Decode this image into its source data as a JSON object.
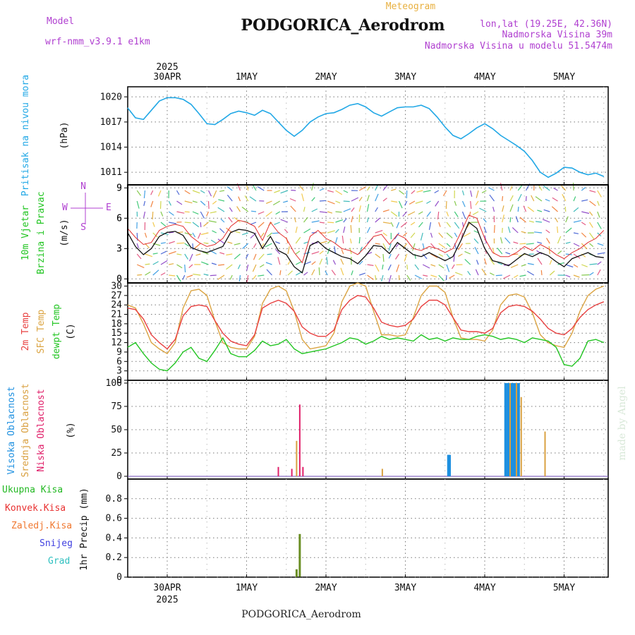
{
  "header": {
    "model_label": "Model",
    "model_name": "wrf-nmm_v3.9.1 e1km",
    "meteogram": "Meteogram",
    "station": "PODGORICA_Aerodrom",
    "lonlat": "lon,lat (19.25E, 42.36N)",
    "elevation": "Nadmorska Visina 39m",
    "model_elevation": "Nadmorska Visina u modelu 51.5474m",
    "footer": "PODGORICA_Aerodrom",
    "watermark": "made by Angel"
  },
  "days": [
    "30APR",
    "1MAY",
    "2MAY",
    "3MAY",
    "4MAY",
    "5MAY"
  ],
  "year": "2025",
  "colors": {
    "pressure": "#22a8e6",
    "wind_speed_max": "#e23030",
    "wind_speed": "#111111",
    "t2m": "#e84040",
    "sfc": "#dba442",
    "dewpt": "#22c522",
    "cloud_high": "#1e90e0",
    "cloud_mid": "#d9a040",
    "cloud_low": "#e0206a",
    "precip_total": "#22b822",
    "precip_conv": "#e83030",
    "precip_frozen": "#f07830",
    "precip_snow": "#4040e0",
    "precip_grad": "#30c0c0",
    "precip_bar": "#6a8e23",
    "ylabel_blue": "#22a8e6",
    "ylabel_purple": "#b040d0",
    "header_orange": "#e8b040"
  },
  "panels": {
    "pressure": {
      "ylabel1": "Pritisak na nivou mora",
      "ylabel2": "(hPa)",
      "ticks": [
        "1011",
        "1014",
        "1017",
        "1020"
      ]
    },
    "wind": {
      "ylabel1": "10m Vjetar",
      "ylabel1b": "Brzina i Pravac",
      "ylabel2": "(m/s)",
      "ticks": [
        "0",
        "3",
        "6",
        "9"
      ],
      "compass_n": "N",
      "compass_w": "W",
      "compass_e": "E",
      "compass_s": "S"
    },
    "temp": {
      "ylabel_t2m": "2m Temp",
      "ylabel_sfc": "SFC Temp",
      "ylabel_dew": "dewpt Temp",
      "ylabel2": "(C)",
      "ticks": [
        "0",
        "3",
        "6",
        "9",
        "12",
        "15",
        "18",
        "21",
        "24",
        "27",
        "30"
      ]
    },
    "cloud": {
      "ylabel_high": "Visoka Oblacnost",
      "ylabel_mid": "Srednja Oblacnost",
      "ylabel_low": "Niska Oblacnost",
      "ylabel2": "(%)",
      "ticks": [
        "0",
        "25",
        "50",
        "75",
        "100"
      ]
    },
    "precip": {
      "legend": [
        "Ukupna Kisa",
        "Konvek.Kisa",
        "Zaledj.Kisa",
        "Snijeg",
        "Grad"
      ],
      "ylabel": "1hr Precip (mm)",
      "ticks": [
        "0",
        "0.2",
        "0.4",
        "0.6",
        "0.8"
      ]
    }
  },
  "chart_data": [
    {
      "type": "line",
      "title": "Pritisak na nivou mora",
      "ylabel": "(hPa)",
      "ylim": [
        1009.5,
        1021.2
      ],
      "x_unit": "days after 30APR 00h",
      "x": [
        -0.5,
        -0.4,
        -0.3,
        -0.2,
        -0.1,
        0,
        0.1,
        0.2,
        0.3,
        0.4,
        0.5,
        0.6,
        0.7,
        0.8,
        0.9,
        1,
        1.1,
        1.2,
        1.3,
        1.4,
        1.5,
        1.6,
        1.7,
        1.8,
        1.9,
        2,
        2.1,
        2.2,
        2.3,
        2.4,
        2.5,
        2.6,
        2.7,
        2.8,
        2.9,
        3,
        3.1,
        3.2,
        3.3,
        3.4,
        3.5,
        3.6,
        3.7,
        3.8,
        3.9,
        4,
        4.1,
        4.2,
        4.3,
        4.4,
        4.5,
        4.6,
        4.7,
        4.8,
        4.9,
        5,
        5.1,
        5.2,
        5.3,
        5.4,
        5.5
      ],
      "series": [
        {
          "name": "Pritisak",
          "values": [
            1018.7,
            1017.5,
            1017.3,
            1018.4,
            1019.5,
            1019.9,
            1019.9,
            1019.7,
            1019.1,
            1018.0,
            1016.8,
            1016.7,
            1017.3,
            1018.0,
            1018.3,
            1018.1,
            1017.8,
            1018.4,
            1018.0,
            1017.0,
            1016.0,
            1015.3,
            1016.0,
            1017.0,
            1017.6,
            1018.0,
            1018.1,
            1018.5,
            1019.0,
            1019.2,
            1018.8,
            1018.1,
            1017.7,
            1018.2,
            1018.7,
            1018.8,
            1018.8,
            1019.0,
            1018.6,
            1017.6,
            1016.4,
            1015.4,
            1015.0,
            1015.6,
            1016.3,
            1016.8,
            1016.2,
            1015.4,
            1014.8,
            1014.2,
            1013.5,
            1012.4,
            1011.0,
            1010.4,
            1010.9,
            1011.6,
            1011.5,
            1011.0,
            1010.7,
            1010.9,
            1010.5
          ]
        }
      ]
    },
    {
      "type": "line",
      "title": "10m Vjetar Brzina i Pravac",
      "ylabel": "(m/s)",
      "ylim": [
        -0.4,
        9.3
      ],
      "x_unit": "days after 30APR 00h",
      "x": [
        -0.5,
        -0.4,
        -0.3,
        -0.2,
        -0.1,
        0,
        0.1,
        0.2,
        0.3,
        0.4,
        0.5,
        0.6,
        0.7,
        0.8,
        0.9,
        1,
        1.1,
        1.2,
        1.3,
        1.4,
        1.5,
        1.6,
        1.7,
        1.8,
        1.9,
        2,
        2.1,
        2.2,
        2.3,
        2.4,
        2.5,
        2.6,
        2.7,
        2.8,
        2.9,
        3,
        3.1,
        3.2,
        3.3,
        3.4,
        3.5,
        3.6,
        3.7,
        3.8,
        3.9,
        4,
        4.1,
        4.2,
        4.3,
        4.4,
        4.5,
        4.6,
        4.7,
        4.8,
        4.9,
        5,
        5.1,
        5.2,
        5.3,
        5.4,
        5.5
      ],
      "series": [
        {
          "name": "Brzina",
          "values": [
            4.6,
            3.2,
            2.4,
            3.0,
            4.2,
            4.6,
            4.7,
            4.3,
            3.1,
            2.8,
            2.6,
            2.9,
            3.2,
            4.6,
            4.9,
            4.8,
            4.5,
            3.0,
            4.2,
            2.8,
            2.4,
            1.2,
            0.6,
            3.3,
            3.7,
            3.0,
            2.6,
            2.2,
            2.0,
            1.5,
            2.3,
            3.3,
            3.2,
            2.5,
            3.6,
            3.0,
            2.4,
            2.2,
            2.6,
            2.2,
            1.8,
            2.2,
            3.8,
            5.6,
            5.0,
            3.0,
            1.8,
            1.6,
            1.3,
            1.9,
            2.5,
            2.2,
            2.6,
            2.3,
            1.7,
            1.2,
            2.0,
            2.3,
            2.6,
            2.2,
            2.1
          ]
        },
        {
          "name": "Max",
          "values": [
            5.0,
            4.1,
            3.4,
            3.6,
            4.8,
            5.2,
            5.4,
            5.2,
            4.2,
            3.6,
            3.2,
            3.4,
            4.0,
            5.2,
            5.8,
            5.6,
            5.2,
            3.8,
            5.6,
            4.6,
            4.0,
            2.6,
            1.6,
            4.2,
            4.8,
            4.0,
            3.6,
            3.0,
            2.8,
            2.4,
            3.2,
            4.2,
            4.4,
            3.4,
            4.4,
            4.0,
            3.0,
            2.8,
            3.2,
            3.0,
            2.6,
            3.0,
            4.6,
            6.3,
            6.0,
            4.0,
            2.6,
            2.2,
            2.2,
            2.6,
            3.2,
            2.8,
            3.4,
            3.0,
            2.4,
            2.0,
            2.6,
            3.0,
            3.6,
            4.0,
            4.8
          ]
        }
      ]
    },
    {
      "type": "line",
      "title": "2m Temp, SFC Temp, dewpt Temp",
      "ylabel": "(C)",
      "ylim": [
        0,
        31
      ],
      "x_unit": "days after 30APR 00h",
      "x": [
        -0.5,
        -0.4,
        -0.3,
        -0.2,
        -0.1,
        0,
        0.1,
        0.2,
        0.3,
        0.4,
        0.5,
        0.6,
        0.7,
        0.8,
        0.9,
        1,
        1.1,
        1.2,
        1.3,
        1.4,
        1.5,
        1.6,
        1.7,
        1.8,
        1.9,
        2,
        2.1,
        2.2,
        2.3,
        2.4,
        2.5,
        2.6,
        2.7,
        2.8,
        2.9,
        3,
        3.1,
        3.2,
        3.3,
        3.4,
        3.5,
        3.6,
        3.7,
        3.8,
        3.9,
        4,
        4.1,
        4.2,
        4.3,
        4.4,
        4.5,
        4.6,
        4.7,
        4.8,
        4.9,
        5,
        5.1,
        5.2,
        5.3,
        5.4,
        5.5
      ],
      "series": [
        {
          "name": "2m Temp",
          "values": [
            23.0,
            22.5,
            19.5,
            14.5,
            12.0,
            10.0,
            13.0,
            20.5,
            23.5,
            24.0,
            23.5,
            19.0,
            15.0,
            12.5,
            11.5,
            11.0,
            14.5,
            23.0,
            24.5,
            25.5,
            24.5,
            22.0,
            17.0,
            15.0,
            14.0,
            14.0,
            16.0,
            22.5,
            25.5,
            27.0,
            26.5,
            23.0,
            18.5,
            17.5,
            17.0,
            17.5,
            19.5,
            23.5,
            25.5,
            25.5,
            24.0,
            20.0,
            16.0,
            15.5,
            15.5,
            15.0,
            16.5,
            21.5,
            23.5,
            24.0,
            23.5,
            22.0,
            19.5,
            16.5,
            15.0,
            14.5,
            16.5,
            20.0,
            22.5,
            24.0,
            25.0
          ]
        },
        {
          "name": "SFC Temp",
          "values": [
            24.0,
            23.0,
            18.0,
            12.0,
            10.0,
            8.5,
            12.0,
            23.0,
            28.5,
            29.0,
            27.0,
            19.0,
            12.0,
            10.5,
            10.0,
            10.0,
            14.0,
            24.5,
            29.0,
            30.0,
            28.5,
            22.0,
            13.0,
            10.0,
            10.5,
            11.0,
            15.0,
            25.0,
            30.0,
            31.0,
            30.0,
            22.0,
            14.5,
            14.5,
            14.0,
            14.5,
            20.0,
            27.0,
            30.0,
            30.0,
            28.0,
            20.0,
            13.5,
            13.0,
            13.0,
            12.5,
            16.0,
            24.0,
            27.0,
            27.5,
            26.5,
            21.5,
            14.5,
            12.0,
            11.0,
            10.5,
            15.0,
            22.0,
            27.0,
            29.0,
            30.0
          ]
        },
        {
          "name": "dewpt Temp",
          "values": [
            10.5,
            12.0,
            8.5,
            5.5,
            3.5,
            3.0,
            5.5,
            9.0,
            10.5,
            7.0,
            6.0,
            9.5,
            13.5,
            8.5,
            7.5,
            7.5,
            9.5,
            12.5,
            11.0,
            11.5,
            13.0,
            10.0,
            8.5,
            9.0,
            9.5,
            10.0,
            11.0,
            12.0,
            13.5,
            13.0,
            11.5,
            12.5,
            14.0,
            13.0,
            13.5,
            13.0,
            12.5,
            14.5,
            13.0,
            13.5,
            12.5,
            13.5,
            13.0,
            13.0,
            14.0,
            14.5,
            14.0,
            13.0,
            13.5,
            13.0,
            12.0,
            13.5,
            13.0,
            12.5,
            10.5,
            5.0,
            4.5,
            7.0,
            12.5,
            13.0,
            12.0
          ]
        }
      ]
    },
    {
      "type": "bar",
      "title": "Visoka / Srednja / Niska Oblacnost",
      "ylabel": "(%)",
      "ylim": [
        -3,
        103
      ],
      "x_unit": "days after 30APR 00h",
      "series": [
        {
          "name": "Visoka Oblacnost",
          "x": [
            3.54,
            3.56,
            4.26,
            4.28,
            4.29,
            4.31,
            4.33,
            4.35,
            4.37,
            4.39,
            4.41,
            4.43
          ],
          "values": [
            23,
            23,
            100,
            100,
            100,
            100,
            100,
            100,
            100,
            100,
            100,
            100
          ]
        },
        {
          "name": "Srednja Oblacnost",
          "x": [
            1.63,
            2.71,
            4.32,
            4.4,
            4.46,
            4.76
          ],
          "values": [
            38,
            8,
            100,
            100,
            85,
            48
          ]
        },
        {
          "name": "Niska Oblacnost",
          "x": [
            1.4,
            1.57,
            1.67,
            1.71
          ],
          "values": [
            10,
            8,
            77,
            10
          ]
        }
      ]
    },
    {
      "type": "bar",
      "title": "1hr Precip",
      "ylabel": "1hr Precip (mm)",
      "ylim": [
        0,
        1.0
      ],
      "x_unit": "days after 30APR 00h",
      "series": [
        {
          "name": "Ukupna Kisa",
          "x": [
            1.63,
            1.67
          ],
          "values": [
            0.08,
            0.44
          ]
        }
      ]
    }
  ]
}
